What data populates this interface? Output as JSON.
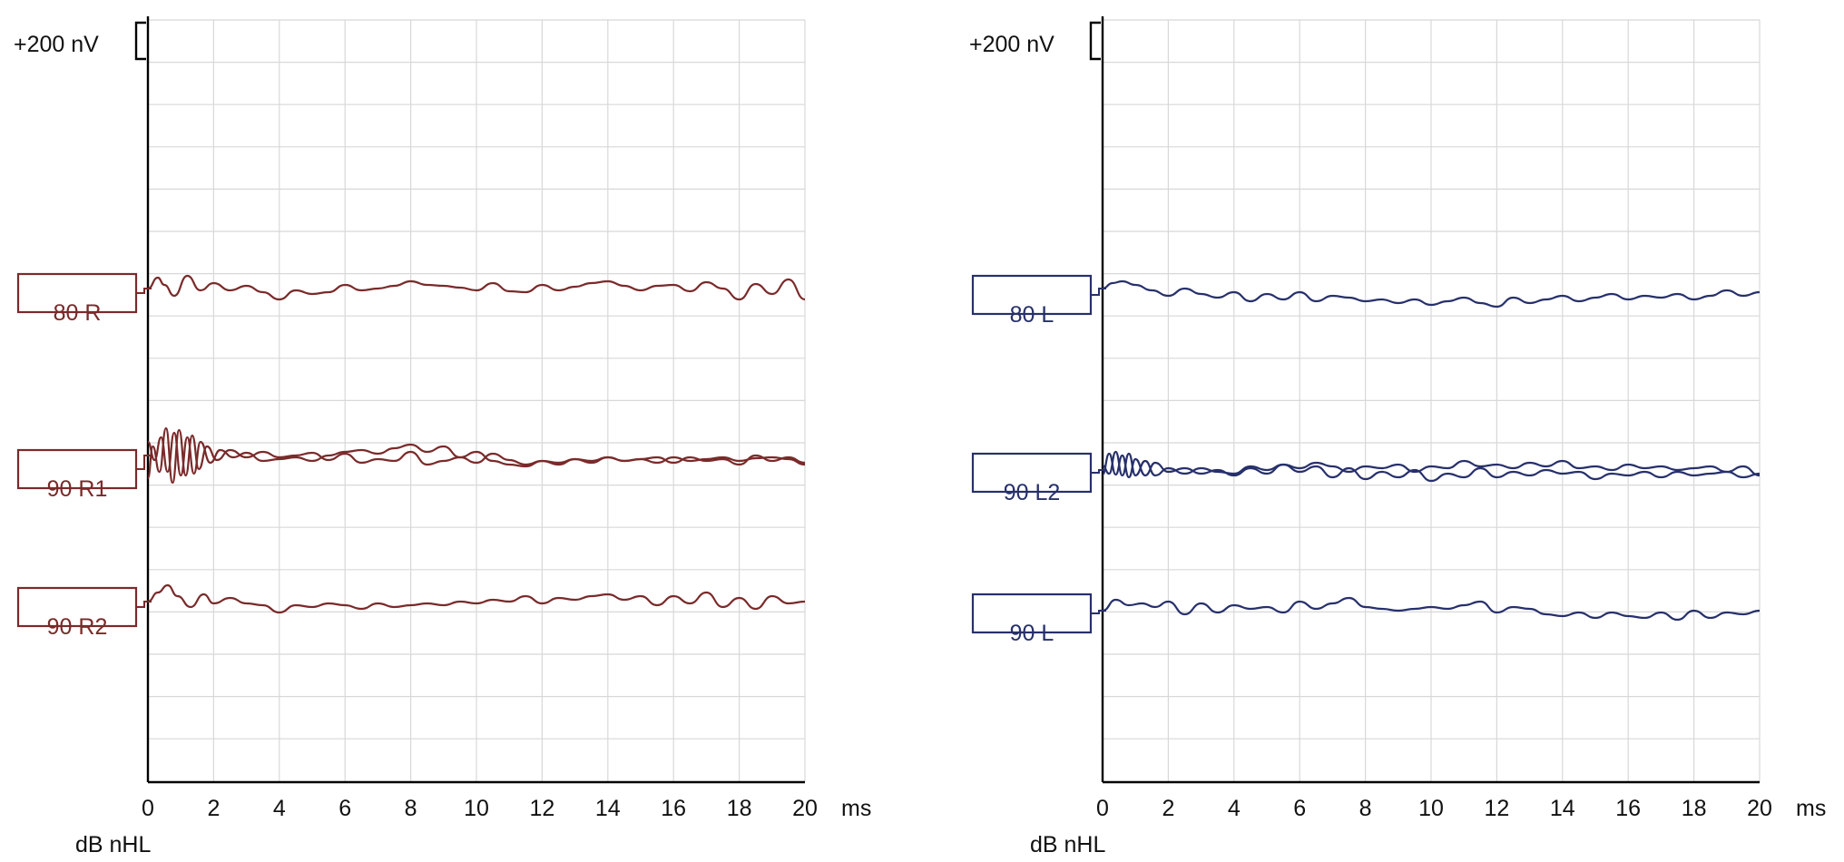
{
  "chart_data": [
    {
      "type": "line",
      "panel": "right-ear",
      "color": "#7a2a2a",
      "scale_label": "+200 nV",
      "xlabel": "ms",
      "level_label": "dB nHL",
      "x_ticks": [
        "0",
        "2",
        "4",
        "6",
        "8",
        "10",
        "12",
        "14",
        "16",
        "18",
        "20"
      ],
      "xlim": [
        0,
        20
      ],
      "grid": true,
      "traces": [
        {
          "label": "80 R",
          "sweeps": [
            {
              "x": [
                0,
                0.3,
                0.5,
                0.8,
                1.2,
                1.6,
                2,
                2.5,
                3,
                3.5,
                4,
                4.5,
                5,
                5.5,
                6,
                6.5,
                7,
                7.5,
                8,
                8.5,
                9,
                9.5,
                10,
                10.5,
                11,
                11.5,
                12,
                12.5,
                13,
                13.5,
                14,
                14.5,
                15,
                15.5,
                16,
                16.5,
                17,
                17.5,
                18,
                18.5,
                19,
                19.5,
                20
              ],
              "y": [
                0,
                12,
                4,
                -8,
                14,
                -2,
                6,
                -2,
                3,
                -4,
                -12,
                -2,
                -6,
                -4,
                4,
                -2,
                0,
                3,
                8,
                4,
                3,
                1,
                -2,
                6,
                -3,
                -4,
                4,
                -2,
                2,
                6,
                8,
                3,
                -2,
                3,
                4,
                -3,
                7,
                0,
                -12,
                5,
                -6,
                10,
                -12
              ]
            }
          ]
        },
        {
          "label": "90 R1",
          "sweeps": [
            {
              "x": [
                0,
                0.15,
                0.35,
                0.55,
                0.75,
                0.95,
                1.15,
                1.35,
                1.55,
                1.8,
                2.1,
                2.5,
                3,
                3.5,
                4,
                4.5,
                5,
                5.5,
                6,
                6.5,
                7,
                7.5,
                8,
                8.5,
                9,
                9.5,
                10,
                10.5,
                11,
                11.5,
                12,
                12.5,
                13,
                13.5,
                14,
                14.5,
                15,
                15.5,
                16,
                16.5,
                17,
                17.5,
                18,
                18.5,
                19,
                19.5,
                20
              ],
              "y": [
                -25,
                10,
                -18,
                30,
                -30,
                28,
                -22,
                22,
                -15,
                10,
                -5,
                6,
                -2,
                4,
                -2,
                0,
                3,
                -5,
                2,
                -8,
                -4,
                -6,
                4,
                -10,
                -6,
                -2,
                -8,
                2,
                -5,
                -10,
                -6,
                -8,
                -4,
                -6,
                -2,
                -6,
                -4,
                -8,
                -2,
                -6,
                -4,
                -2,
                -6,
                -3,
                -2,
                -4,
                -10
              ]
            },
            {
              "x": [
                0,
                0.2,
                0.4,
                0.6,
                0.8,
                1,
                1.2,
                1.4,
                1.6,
                1.9,
                2.2,
                2.6,
                3,
                3.5,
                4,
                4.5,
                5,
                5.5,
                6,
                6.5,
                7,
                7.5,
                8,
                8.5,
                9,
                9.5,
                10,
                10.5,
                11,
                11.5,
                12,
                12.5,
                13,
                13.5,
                14,
                14.5,
                15,
                15.5,
                16,
                16.5,
                17,
                17.5,
                18,
                18.5,
                19,
                19.5,
                20
              ],
              "y": [
                15,
                -5,
                20,
                -18,
                25,
                -22,
                20,
                -20,
                15,
                -8,
                6,
                -2,
                3,
                -6,
                -4,
                -2,
                -6,
                0,
                4,
                6,
                2,
                8,
                12,
                4,
                10,
                -2,
                4,
                -6,
                -10,
                -12,
                -6,
                -10,
                -4,
                -8,
                -2,
                -6,
                -4,
                -2,
                -8,
                -2,
                -6,
                -4,
                -10,
                0,
                -6,
                -2,
                -8
              ]
            }
          ]
        },
        {
          "label": "90 R2",
          "sweeps": [
            {
              "x": [
                0,
                0.3,
                0.6,
                0.9,
                1.3,
                1.7,
                2,
                2.5,
                3,
                3.5,
                4,
                4.5,
                5,
                5.5,
                6,
                6.5,
                7,
                7.5,
                8,
                8.5,
                9,
                9.5,
                10,
                10.5,
                11,
                11.5,
                12,
                12.5,
                13,
                13.5,
                14,
                14.5,
                15,
                15.5,
                16,
                16.5,
                17,
                17.5,
                18,
                18.5,
                19,
                19.5,
                20
              ],
              "y": [
                0,
                10,
                18,
                6,
                -6,
                8,
                -2,
                4,
                -2,
                -4,
                -12,
                -4,
                -6,
                -2,
                -4,
                -8,
                -2,
                -6,
                -4,
                -2,
                -4,
                0,
                -2,
                2,
                0,
                6,
                -2,
                4,
                2,
                6,
                8,
                2,
                6,
                -4,
                6,
                -2,
                10,
                -6,
                4,
                -8,
                6,
                -2,
                0
              ]
            }
          ]
        }
      ]
    },
    {
      "type": "line",
      "panel": "left-ear",
      "color": "#27306b",
      "scale_label": "+200 nV",
      "xlabel": "ms",
      "level_label": "dB nHL",
      "x_ticks": [
        "0",
        "2",
        "4",
        "6",
        "8",
        "10",
        "12",
        "14",
        "16",
        "18",
        "20"
      ],
      "xlim": [
        0,
        20
      ],
      "grid": true,
      "traces": [
        {
          "label": "80 L",
          "sweeps": [
            {
              "x": [
                0,
                0.3,
                0.6,
                1,
                1.5,
                2,
                2.5,
                3,
                3.5,
                4,
                4.5,
                5,
                5.5,
                6,
                6.5,
                7,
                7.5,
                8,
                8.5,
                9,
                9.5,
                10,
                10.5,
                11,
                11.5,
                12,
                12.5,
                13,
                13.5,
                14,
                14.5,
                15,
                15.5,
                16,
                16.5,
                17,
                17.5,
                18,
                18.5,
                19,
                19.5,
                20
              ],
              "y": [
                0,
                6,
                8,
                4,
                -2,
                -8,
                0,
                -6,
                -10,
                -4,
                -14,
                -6,
                -12,
                -4,
                -14,
                -8,
                -10,
                -14,
                -12,
                -16,
                -12,
                -18,
                -14,
                -10,
                -16,
                -20,
                -10,
                -16,
                -12,
                -8,
                -14,
                -10,
                -6,
                -12,
                -8,
                -10,
                -6,
                -12,
                -8,
                -2,
                -8,
                -4
              ]
            }
          ]
        },
        {
          "label": "90 L2",
          "sweeps": [
            {
              "x": [
                0,
                0.2,
                0.4,
                0.6,
                0.8,
                1,
                1.3,
                1.6,
                2,
                2.5,
                3,
                3.5,
                4,
                4.5,
                5,
                5.5,
                6,
                6.5,
                7,
                7.5,
                8,
                8.5,
                9,
                9.5,
                10,
                10.5,
                11,
                11.5,
                12,
                12.5,
                13,
                13.5,
                14,
                14.5,
                15,
                15.5,
                16,
                16.5,
                17,
                17.5,
                18,
                18.5,
                19,
                19.5,
                20
              ],
              "y": [
                -5,
                18,
                -5,
                16,
                -8,
                12,
                -6,
                8,
                -2,
                2,
                -4,
                0,
                -6,
                2,
                -4,
                6,
                -2,
                4,
                -8,
                2,
                -10,
                -2,
                -8,
                0,
                -12,
                -4,
                -8,
                2,
                -8,
                -2,
                -6,
                0,
                -4,
                -2,
                -10,
                -4,
                -6,
                -2,
                -8,
                -2,
                -6,
                -4,
                -2,
                -8,
                -4
              ]
            },
            {
              "x": [
                0,
                0.2,
                0.4,
                0.6,
                0.8,
                1,
                1.3,
                1.6,
                2,
                2.5,
                3,
                3.5,
                4,
                4.5,
                5,
                5.5,
                6,
                6.5,
                7,
                7.5,
                8,
                8.5,
                9,
                9.5,
                10,
                10.5,
                11,
                11.5,
                12,
                12.5,
                13,
                13.5,
                14,
                14.5,
                15,
                15.5,
                16,
                16.5,
                17,
                17.5,
                18,
                18.5,
                19,
                19.5,
                20
              ],
              "y": [
                5,
                -4,
                20,
                -6,
                18,
                -6,
                10,
                -6,
                2,
                -4,
                2,
                -2,
                -4,
                4,
                0,
                6,
                2,
                8,
                4,
                -2,
                4,
                2,
                6,
                -2,
                4,
                2,
                10,
                4,
                6,
                2,
                8,
                4,
                10,
                2,
                4,
                0,
                6,
                2,
                4,
                0,
                2,
                4,
                -2,
                4,
                -6
              ]
            }
          ]
        },
        {
          "label": "90 L",
          "sweeps": [
            {
              "x": [
                0,
                0.4,
                0.8,
                1.2,
                1.6,
                2,
                2.5,
                3,
                3.5,
                4,
                4.5,
                5,
                5.5,
                6,
                6.5,
                7,
                7.5,
                8,
                8.5,
                9,
                9.5,
                10,
                10.5,
                11,
                11.5,
                12,
                12.5,
                13,
                13.5,
                14,
                14.5,
                15,
                15.5,
                16,
                16.5,
                17,
                17.5,
                18,
                18.5,
                19,
                19.5,
                20
              ],
              "y": [
                0,
                12,
                6,
                8,
                4,
                10,
                -4,
                8,
                -2,
                6,
                2,
                4,
                -2,
                10,
                2,
                8,
                14,
                4,
                2,
                0,
                2,
                4,
                2,
                6,
                10,
                -2,
                4,
                2,
                -4,
                -6,
                -2,
                -8,
                -2,
                -6,
                -8,
                -2,
                -10,
                0,
                -8,
                -2,
                -4,
                0
              ]
            }
          ]
        }
      ]
    }
  ]
}
